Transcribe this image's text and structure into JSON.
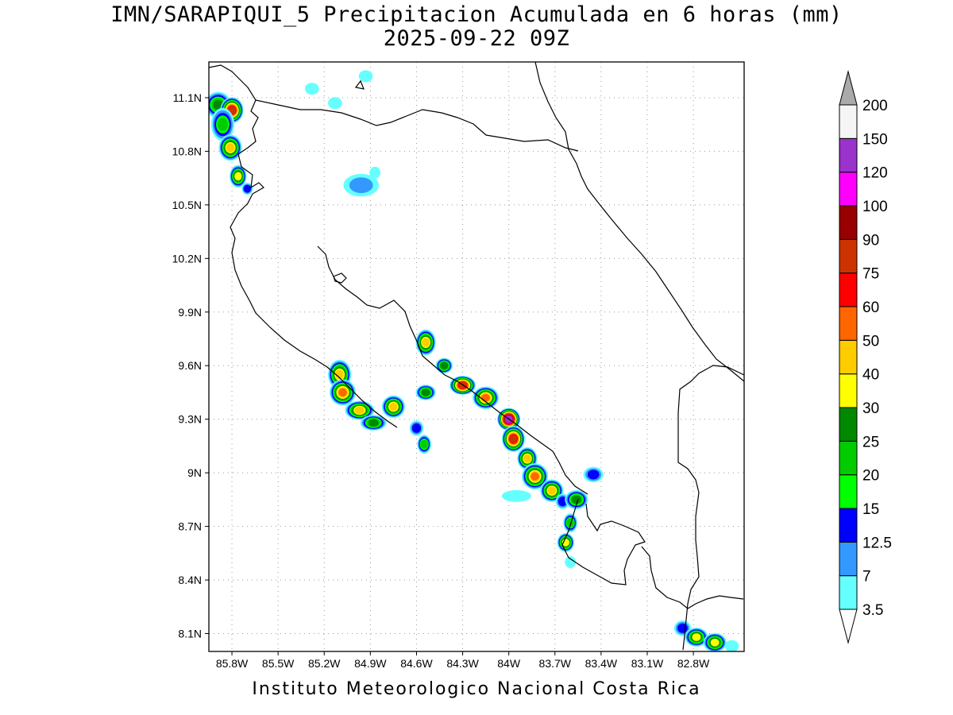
{
  "title_line1": "IMN/SARAPIQUI_5 Precipitacion Acumulada en 6 horas (mm)",
  "title_line2": "2025-09-22 09Z",
  "footer": "Instituto Meteorologico Nacional Costa Rica",
  "map": {
    "lon_range": [
      -85.95,
      -82.47
    ],
    "lat_range": [
      8.0,
      11.3
    ],
    "lat_ticks": [
      {
        "value": 11.1,
        "label": "11.1N"
      },
      {
        "value": 10.8,
        "label": "10.8N"
      },
      {
        "value": 10.5,
        "label": "10.5N"
      },
      {
        "value": 10.2,
        "label": "10.2N"
      },
      {
        "value": 9.9,
        "label": "9.9N"
      },
      {
        "value": 9.6,
        "label": "9.6N"
      },
      {
        "value": 9.3,
        "label": "9.3N"
      },
      {
        "value": 9.0,
        "label": "9N"
      },
      {
        "value": 8.7,
        "label": "8.7N"
      },
      {
        "value": 8.4,
        "label": "8.4N"
      },
      {
        "value": 8.1,
        "label": "8.1N"
      }
    ],
    "lon_ticks": [
      {
        "value": -85.8,
        "label": "85.8W"
      },
      {
        "value": -85.5,
        "label": "85.5W"
      },
      {
        "value": -85.2,
        "label": "85.2W"
      },
      {
        "value": -84.9,
        "label": "84.9W"
      },
      {
        "value": -84.6,
        "label": "84.6W"
      },
      {
        "value": -84.3,
        "label": "84.3W"
      },
      {
        "value": -84.0,
        "label": "84W"
      },
      {
        "value": -83.7,
        "label": "83.7W"
      },
      {
        "value": -83.4,
        "label": "83.4W"
      },
      {
        "value": -83.1,
        "label": "83.1W"
      },
      {
        "value": -82.8,
        "label": "82.8W"
      }
    ],
    "grid": "dotted"
  },
  "colorbar": {
    "labels": [
      "3.5",
      "7",
      "12.5",
      "15",
      "20",
      "25",
      "30",
      "40",
      "50",
      "60",
      "75",
      "90",
      "100",
      "120",
      "150",
      "200"
    ],
    "colors": [
      "#66ffff",
      "#3399ff",
      "#0000ff",
      "#00ff00",
      "#00cc00",
      "#008800",
      "#ffff00",
      "#ffcc00",
      "#ff6600",
      "#ff0000",
      "#cc3300",
      "#990000",
      "#ff00ff",
      "#9933cc",
      "#f5f5f5"
    ],
    "over_color": "#aaaaaa",
    "under_color": "#ffffff"
  },
  "precip_cells": [
    {
      "lon": -85.89,
      "lat": 11.06,
      "rx": 0.07,
      "ry": 0.06,
      "level": 5
    },
    {
      "lon": -85.8,
      "lat": 11.03,
      "rx": 0.06,
      "ry": 0.06,
      "level": 10
    },
    {
      "lon": -85.86,
      "lat": 10.95,
      "rx": 0.06,
      "ry": 0.08,
      "level": 4
    },
    {
      "lon": -85.81,
      "lat": 10.82,
      "rx": 0.06,
      "ry": 0.06,
      "level": 7
    },
    {
      "lon": -85.76,
      "lat": 10.66,
      "rx": 0.04,
      "ry": 0.05,
      "level": 6
    },
    {
      "lon": -85.7,
      "lat": 10.59,
      "rx": 0.02,
      "ry": 0.02,
      "level": 2
    },
    {
      "lon": -85.28,
      "lat": 11.15,
      "rx": 0.03,
      "ry": 0.02,
      "level": 0
    },
    {
      "lon": -85.13,
      "lat": 11.07,
      "rx": 0.03,
      "ry": 0.02,
      "level": 0
    },
    {
      "lon": -84.93,
      "lat": 11.22,
      "rx": 0.03,
      "ry": 0.02,
      "level": 0
    },
    {
      "lon": -84.96,
      "lat": 10.61,
      "rx": 0.1,
      "ry": 0.05,
      "level": 1
    },
    {
      "lon": -84.87,
      "lat": 10.68,
      "rx": 0.02,
      "ry": 0.02,
      "level": 0
    },
    {
      "lon": -85.1,
      "lat": 9.55,
      "rx": 0.06,
      "ry": 0.07,
      "level": 7
    },
    {
      "lon": -85.08,
      "lat": 9.45,
      "rx": 0.07,
      "ry": 0.06,
      "level": 8
    },
    {
      "lon": -84.97,
      "lat": 9.35,
      "rx": 0.08,
      "ry": 0.04,
      "level": 7
    },
    {
      "lon": -84.88,
      "lat": 9.28,
      "rx": 0.07,
      "ry": 0.03,
      "level": 5
    },
    {
      "lon": -84.75,
      "lat": 9.37,
      "rx": 0.06,
      "ry": 0.05,
      "level": 7
    },
    {
      "lon": -84.6,
      "lat": 9.25,
      "rx": 0.03,
      "ry": 0.03,
      "level": 2
    },
    {
      "lon": -84.55,
      "lat": 9.16,
      "rx": 0.03,
      "ry": 0.04,
      "level": 4
    },
    {
      "lon": -84.54,
      "lat": 9.73,
      "rx": 0.05,
      "ry": 0.06,
      "level": 7
    },
    {
      "lon": -84.54,
      "lat": 9.45,
      "rx": 0.05,
      "ry": 0.03,
      "level": 5
    },
    {
      "lon": -84.42,
      "lat": 9.6,
      "rx": 0.04,
      "ry": 0.03,
      "level": 5
    },
    {
      "lon": -84.3,
      "lat": 9.49,
      "rx": 0.07,
      "ry": 0.04,
      "level": 10
    },
    {
      "lon": -84.15,
      "lat": 9.42,
      "rx": 0.07,
      "ry": 0.05,
      "level": 8
    },
    {
      "lon": -84.0,
      "lat": 9.3,
      "rx": 0.06,
      "ry": 0.05,
      "level": 13
    },
    {
      "lon": -83.97,
      "lat": 9.19,
      "rx": 0.06,
      "ry": 0.06,
      "level": 10
    },
    {
      "lon": -83.88,
      "lat": 9.08,
      "rx": 0.05,
      "ry": 0.05,
      "level": 7
    },
    {
      "lon": -83.83,
      "lat": 8.98,
      "rx": 0.07,
      "ry": 0.06,
      "level": 8
    },
    {
      "lon": -83.72,
      "lat": 8.9,
      "rx": 0.06,
      "ry": 0.05,
      "level": 7
    },
    {
      "lon": -83.65,
      "lat": 8.84,
      "rx": 0.03,
      "ry": 0.03,
      "level": 2
    },
    {
      "lon": -83.56,
      "lat": 8.85,
      "rx": 0.06,
      "ry": 0.04,
      "level": 5
    },
    {
      "lon": -83.6,
      "lat": 8.72,
      "rx": 0.03,
      "ry": 0.04,
      "level": 4
    },
    {
      "lon": -83.63,
      "lat": 8.61,
      "rx": 0.04,
      "ry": 0.04,
      "level": 6
    },
    {
      "lon": -83.6,
      "lat": 8.5,
      "rx": 0.02,
      "ry": 0.02,
      "level": 0
    },
    {
      "lon": -83.95,
      "lat": 8.87,
      "rx": 0.08,
      "ry": 0.02,
      "level": 0
    },
    {
      "lon": -83.45,
      "lat": 8.99,
      "rx": 0.05,
      "ry": 0.03,
      "level": 2
    },
    {
      "lon": -82.87,
      "lat": 8.13,
      "rx": 0.04,
      "ry": 0.03,
      "level": 2
    },
    {
      "lon": -82.78,
      "lat": 8.08,
      "rx": 0.06,
      "ry": 0.04,
      "level": 6
    },
    {
      "lon": -82.66,
      "lat": 8.05,
      "rx": 0.06,
      "ry": 0.04,
      "level": 6
    },
    {
      "lon": -82.55,
      "lat": 8.03,
      "rx": 0.03,
      "ry": 0.02,
      "level": 0
    }
  ]
}
